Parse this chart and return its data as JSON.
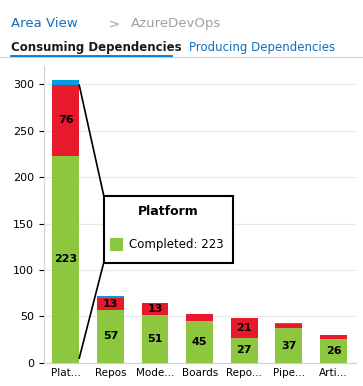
{
  "title_area": "Area View",
  "title_project": "AzureDevOps",
  "tab_active": "Consuming Dependencies",
  "tab_inactive": "Producing Dependencies",
  "categories": [
    "Plat...",
    "Repos",
    "Mode...",
    "Boards",
    "Repo...",
    "Pipe...",
    "Arti..."
  ],
  "completed": [
    223,
    57,
    51,
    45,
    27,
    37,
    26
  ],
  "not_completed": [
    76,
    13,
    13,
    8,
    21,
    5,
    4
  ],
  "in_progress": [
    5,
    2,
    0,
    0,
    0,
    1,
    0
  ],
  "color_completed": "#8DC63F",
  "color_not_completed": "#E8192C",
  "color_in_progress": "#009CDE",
  "background": "#FFFFFF",
  "ylim": [
    0,
    320
  ],
  "yticks": [
    0,
    50,
    100,
    150,
    200,
    250,
    300
  ],
  "tooltip_title": "Platform",
  "tooltip_label": "Completed: 223",
  "tooltip_color": "#8DC63F",
  "header_color": "#106EBE",
  "arrow_color": "#A0A0A0",
  "tab_underline_color": "#0078D4"
}
